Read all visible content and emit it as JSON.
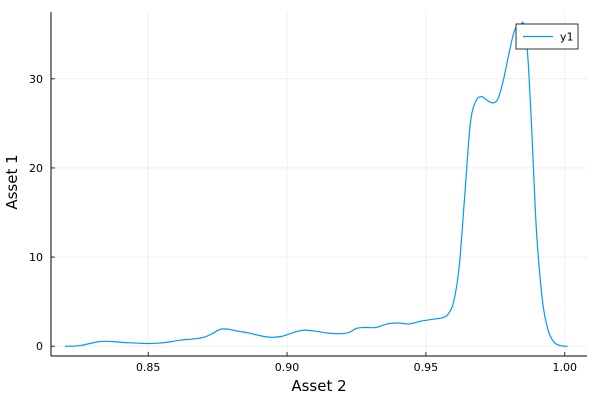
{
  "chart_data": {
    "type": "line",
    "title": "",
    "xlabel": "Asset 2",
    "ylabel": "Asset 1",
    "xlim": [
      0.815,
      1.008
    ],
    "ylim": [
      -1.1,
      37.5
    ],
    "xticks": [
      0.85,
      0.9,
      0.95,
      1.0
    ],
    "xtick_labels": [
      "0.85",
      "0.90",
      "0.95",
      "1.00"
    ],
    "yticks": [
      0,
      10,
      20,
      30
    ],
    "ytick_labels": [
      "0",
      "10",
      "20",
      "30"
    ],
    "grid": true,
    "legend_position": "top-right",
    "series": [
      {
        "name": "y1",
        "color": "#009AFA",
        "x": [
          0.82,
          0.823,
          0.826,
          0.829,
          0.832,
          0.835,
          0.838,
          0.842,
          0.846,
          0.85,
          0.854,
          0.858,
          0.862,
          0.866,
          0.87,
          0.873,
          0.876,
          0.879,
          0.882,
          0.886,
          0.89,
          0.894,
          0.898,
          0.902,
          0.906,
          0.91,
          0.914,
          0.918,
          0.922,
          0.925,
          0.928,
          0.932,
          0.936,
          0.94,
          0.944,
          0.948,
          0.952,
          0.956,
          0.958,
          0.96,
          0.962,
          0.964,
          0.966,
          0.968,
          0.97,
          0.972,
          0.974,
          0.976,
          0.978,
          0.98,
          0.982,
          0.984,
          0.985,
          0.986,
          0.987,
          0.988,
          0.989,
          0.99,
          0.992,
          0.994,
          0.996,
          0.998,
          1.0,
          1.001
        ],
        "y": [
          0.0,
          0.0,
          0.1,
          0.3,
          0.5,
          0.55,
          0.5,
          0.4,
          0.35,
          0.3,
          0.35,
          0.5,
          0.7,
          0.8,
          1.0,
          1.4,
          1.9,
          1.9,
          1.7,
          1.5,
          1.2,
          1.0,
          1.1,
          1.5,
          1.8,
          1.7,
          1.5,
          1.4,
          1.5,
          2.0,
          2.1,
          2.1,
          2.5,
          2.6,
          2.5,
          2.8,
          3.0,
          3.2,
          3.6,
          5.0,
          9.0,
          17.0,
          25.0,
          27.5,
          28.0,
          27.6,
          27.3,
          27.8,
          30.0,
          33.0,
          35.5,
          36.0,
          36.3,
          35.0,
          31.0,
          25.0,
          18.0,
          12.0,
          5.0,
          1.8,
          0.5,
          0.1,
          0.0,
          0.0
        ]
      }
    ]
  }
}
